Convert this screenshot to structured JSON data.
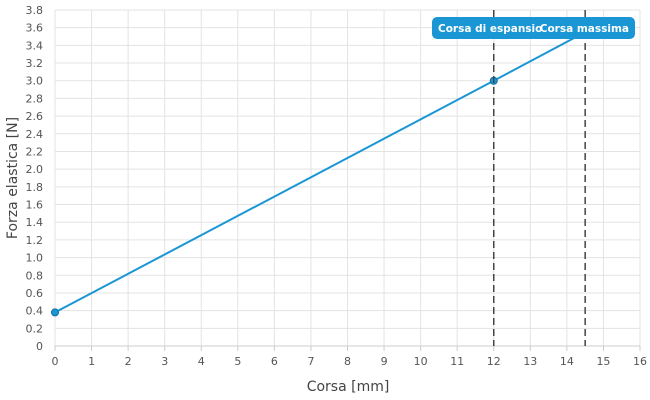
{
  "chart_data": {
    "type": "line",
    "xlabel": "Corsa [mm]",
    "ylabel": "Forza elastica [N]",
    "xlim": [
      0,
      16
    ],
    "ylim": [
      0,
      3.8
    ],
    "x_ticks": [
      "0",
      "1",
      "2",
      "3",
      "4",
      "5",
      "6",
      "7",
      "8",
      "9",
      "10",
      "11",
      "12",
      "13",
      "14",
      "15",
      "16"
    ],
    "y_ticks": [
      "0",
      "0.2",
      "0.4",
      "0.6",
      "0.8",
      "1.0",
      "1.2",
      "1.4",
      "1.6",
      "1.8",
      "2.0",
      "2.2",
      "2.4",
      "2.6",
      "2.8",
      "3.0",
      "3.2",
      "3.4",
      "3.6",
      "3.8"
    ],
    "grid": true,
    "series": [
      {
        "color": "#1a96d4",
        "points": [
          {
            "x": 0,
            "y": 0.38
          },
          {
            "x": 12,
            "y": 3.0
          },
          {
            "x": 14.5,
            "y": 3.55
          }
        ],
        "markers": [
          {
            "x": 0,
            "y": 0.38
          },
          {
            "x": 12,
            "y": 3.0
          }
        ]
      }
    ],
    "annotations": [
      {
        "label": "Corsa di espansio",
        "x": 12
      },
      {
        "label": "Corsa massima",
        "x": 14.5
      }
    ],
    "annotation_line_color": "#444444",
    "badge_color": "#1a96d4"
  }
}
